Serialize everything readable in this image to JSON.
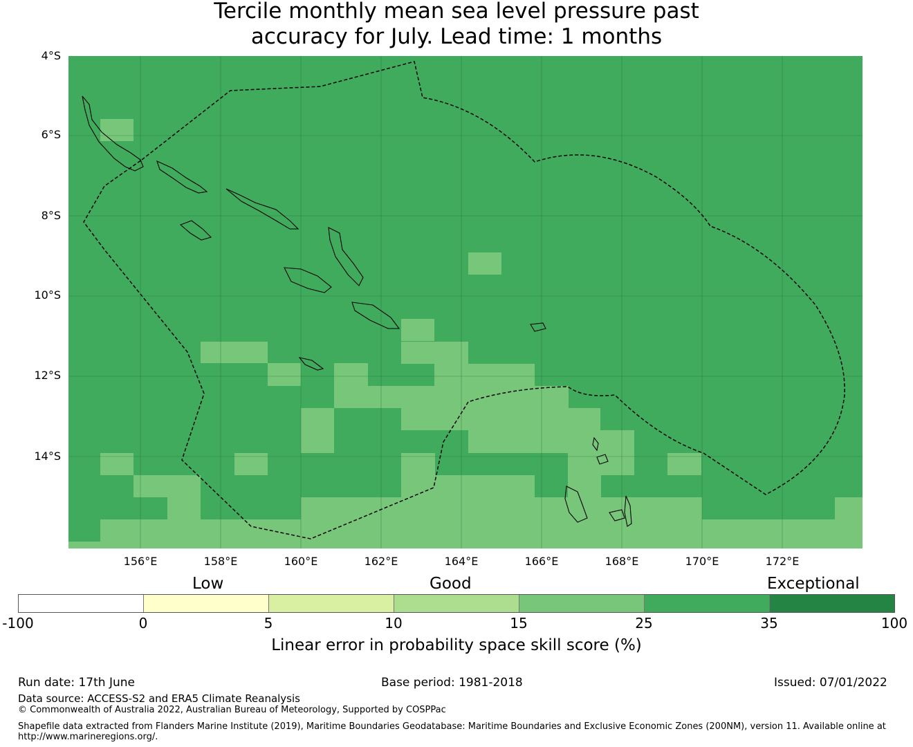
{
  "title": {
    "line1": "Tercile monthly mean sea level pressure past",
    "line2": "accuracy for July. Lead time: 1 months"
  },
  "map": {
    "lat_labels": [
      "4°S",
      "6°S",
      "8°S",
      "10°S",
      "12°S",
      "14°S"
    ],
    "lon_labels": [
      "156°E",
      "158°E",
      "160°E",
      "162°E",
      "164°E",
      "166°E",
      "168°E",
      "170°E",
      "172°E"
    ],
    "base_color": "#41ab5d",
    "cell_color": "#78c679"
  },
  "legend": {
    "categories": [
      "Low",
      "Good",
      "Exceptional"
    ],
    "ticks": [
      "-100",
      "0",
      "5",
      "10",
      "15",
      "25",
      "35",
      "100"
    ],
    "colors": [
      "#ffffff",
      "#ffffcc",
      "#d9f0a3",
      "#addd8e",
      "#78c679",
      "#41ab5d",
      "#238443"
    ],
    "label": "Linear error in probability space skill score (%)"
  },
  "footer": {
    "run_date": "Run date: 17th June",
    "base_period": "Base period: 1981-2018",
    "issued": "Issued: 07/01/2022",
    "data_source": "Data source: ACCESS-S2 and ERA5 Climate Reanalysis",
    "copyright": "© Commonwealth of Australia 2022, Australian Bureau of Meteorology, Supported by COSPPac",
    "shapefile_line1": "Shapefile data extracted from Flanders Marine Institute (2019), Maritime Boundaries Geodatabase: Maritime Boundaries and Exclusive Economic Zones (200NM), version 11. Available online at",
    "shapefile_line2": "http://www.marineregions.org/."
  }
}
